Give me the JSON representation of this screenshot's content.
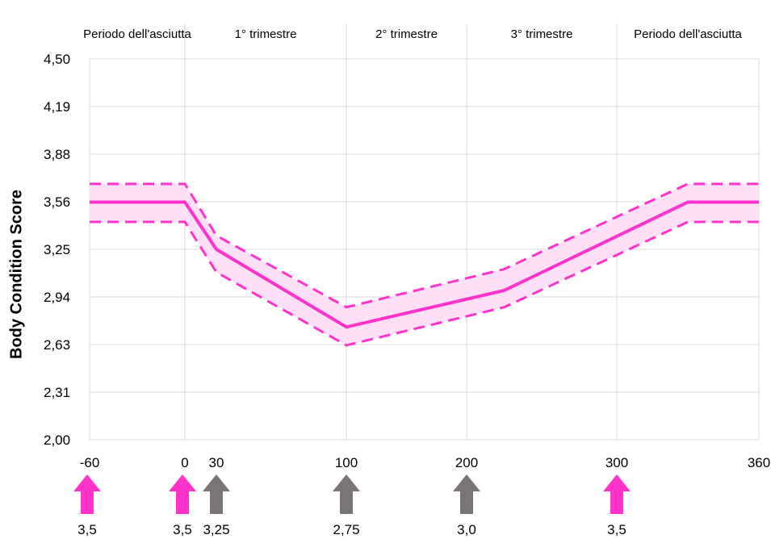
{
  "chart_data": {
    "type": "line",
    "title": "",
    "ylabel": "Body Condition Score",
    "xlabel": "",
    "y_tick_labels": [
      "4,50",
      "4,19",
      "3,88",
      "3,56",
      "3,25",
      "2,94",
      "2,63",
      "2,31",
      "2,00"
    ],
    "ylim": [
      2.0,
      4.5
    ],
    "x_tick_labels": [
      "-60",
      "0",
      "30",
      "100",
      "200",
      "300",
      "360"
    ],
    "x_tick_values": [
      -60,
      0,
      30,
      100,
      200,
      300,
      360
    ],
    "grid": true,
    "periods": [
      {
        "label": "Periodo dell'asciutta",
        "from": -60,
        "to": 0
      },
      {
        "label": "1° trimestre",
        "from": 0,
        "to": 100
      },
      {
        "label": "2° trimestre",
        "from": 100,
        "to": 200
      },
      {
        "label": "3° trimestre",
        "from": 200,
        "to": 300
      },
      {
        "label": "Periodo dell'asciutta",
        "from": 300,
        "to": 360
      }
    ],
    "series": [
      {
        "x": [
          -60,
          0,
          30,
          100,
          225,
          330,
          360
        ],
        "y": [
          3.56,
          3.56,
          3.25,
          2.74,
          2.98,
          3.56,
          3.56
        ],
        "upper": [
          3.68,
          3.68,
          3.34,
          2.87,
          3.12,
          3.68,
          3.68
        ],
        "lower": [
          3.43,
          3.43,
          3.1,
          2.62,
          2.87,
          3.43,
          3.43
        ]
      }
    ],
    "colors": {
      "line": "#ff33cc",
      "band": "#fde0f5",
      "grid": "#d9d9d9",
      "arrow_pink": "#ff33cc",
      "arrow_gray": "#7a7574"
    },
    "target_arrows": [
      {
        "x": -60,
        "label": "3,5",
        "color": "pink"
      },
      {
        "x": 0,
        "label": "3,5",
        "color": "pink"
      },
      {
        "x": 30,
        "label": "3,25",
        "color": "gray"
      },
      {
        "x": 100,
        "label": "2,75",
        "color": "gray"
      },
      {
        "x": 200,
        "label": "3,0",
        "color": "gray"
      },
      {
        "x": 300,
        "label": "3,5",
        "color": "pink"
      }
    ]
  }
}
